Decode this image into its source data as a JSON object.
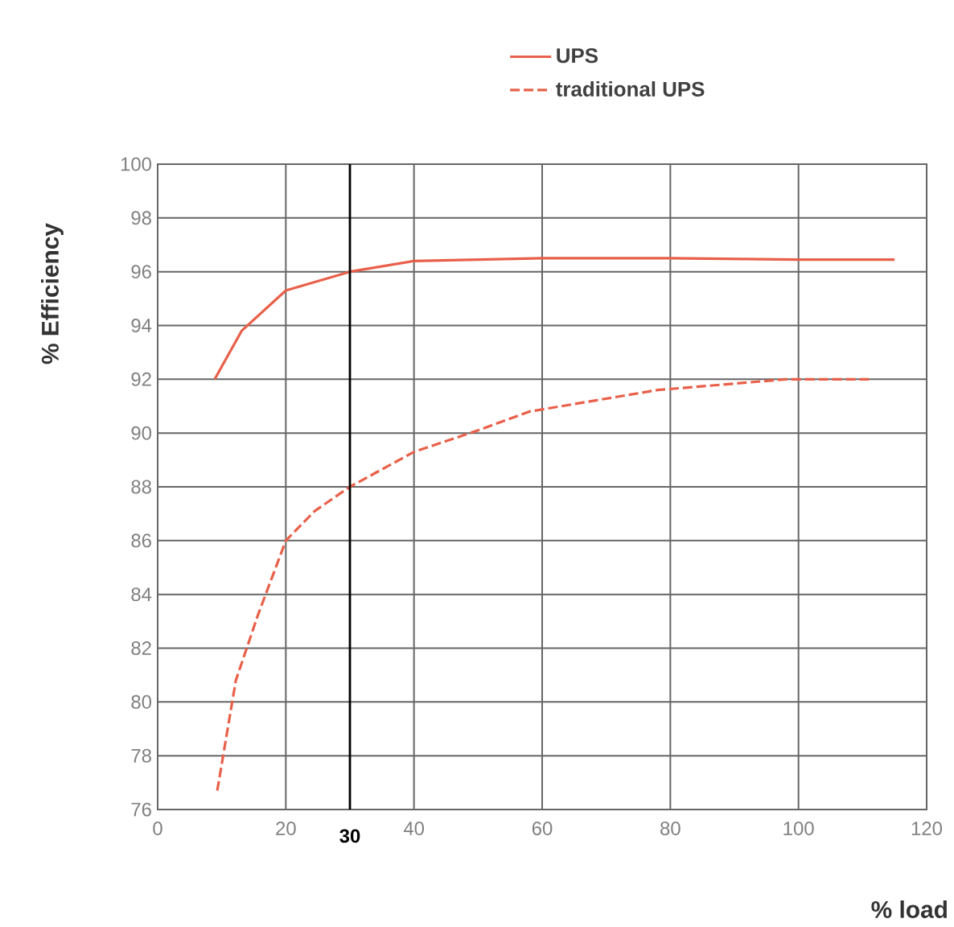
{
  "chart_data": {
    "type": "line",
    "xlabel": "% load",
    "ylabel": "% Efficiency",
    "xlim": [
      0,
      120
    ],
    "ylim": [
      76,
      100
    ],
    "xticks": [
      0,
      20,
      40,
      60,
      80,
      100,
      120
    ],
    "yticks": [
      76,
      78,
      80,
      82,
      84,
      86,
      88,
      90,
      92,
      94,
      96,
      98,
      100
    ],
    "grid": true,
    "legend": "top right",
    "ref_lines": [
      {
        "axis": "x",
        "value": 30,
        "label": "30",
        "color": "#000000"
      }
    ],
    "series": [
      {
        "name": "UPS",
        "color": "#e8604a",
        "line_style": "solid",
        "x": [
          8.9,
          13.1,
          20,
          30,
          40,
          60,
          80,
          100,
          115
        ],
        "values": [
          92.0,
          93.8,
          95.3,
          96.0,
          96.4,
          96.5,
          96.5,
          96.45,
          96.45
        ]
      },
      {
        "name": "traditional UPS",
        "color": "#e8604a",
        "line_style": "dashed",
        "x": [
          9.3,
          12.2,
          15.6,
          20,
          24.5,
          30,
          40,
          50,
          58,
          78,
          98,
          111
        ],
        "values": [
          76.7,
          80.8,
          83.2,
          86.0,
          87.1,
          88.0,
          89.3,
          90.1,
          90.8,
          91.6,
          92.0,
          92.0
        ]
      }
    ]
  }
}
